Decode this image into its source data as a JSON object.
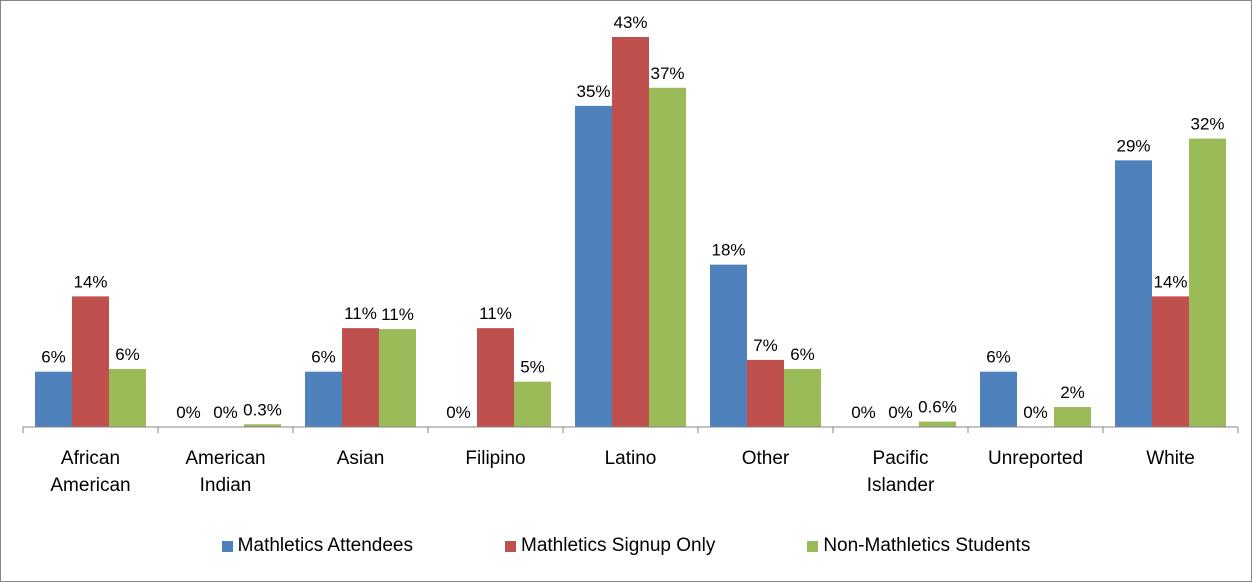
{
  "chart_data": {
    "type": "bar",
    "categories": [
      "African American",
      "American Indian",
      "Asian",
      "Filipino",
      "Latino",
      "Other",
      "Pacific Islander",
      "Unreported",
      "White"
    ],
    "series": [
      {
        "name": "Mathletics Attendees",
        "color": "#4f81bd",
        "values": [
          6.1,
          0,
          6.1,
          0,
          35.4,
          17.9,
          0,
          6.1,
          29.4
        ],
        "value_labels": [
          "6%",
          "0%",
          "6%",
          "0%",
          "35%",
          "18%",
          "0%",
          "6%",
          "29%"
        ]
      },
      {
        "name": "Mathletics Signup Only",
        "color": "#c0504d",
        "values": [
          14.4,
          0,
          10.9,
          10.9,
          43,
          7.4,
          0,
          0,
          14.4
        ],
        "value_labels": [
          "14%",
          "0%",
          "11%",
          "11%",
          "43%",
          "7%",
          "0%",
          "0%",
          "14%"
        ]
      },
      {
        "name": "Non-Mathletics Students",
        "color": "#9bbb59",
        "values": [
          6.4,
          0.3,
          10.8,
          5,
          37.4,
          6.4,
          0.6,
          2.2,
          31.8
        ],
        "value_labels": [
          "6%",
          "0.3%",
          "11%",
          "5%",
          "37%",
          "6%",
          "0.6%",
          "2%",
          "32%"
        ]
      }
    ],
    "ylim": [
      0,
      46
    ],
    "legend": "bottom"
  }
}
